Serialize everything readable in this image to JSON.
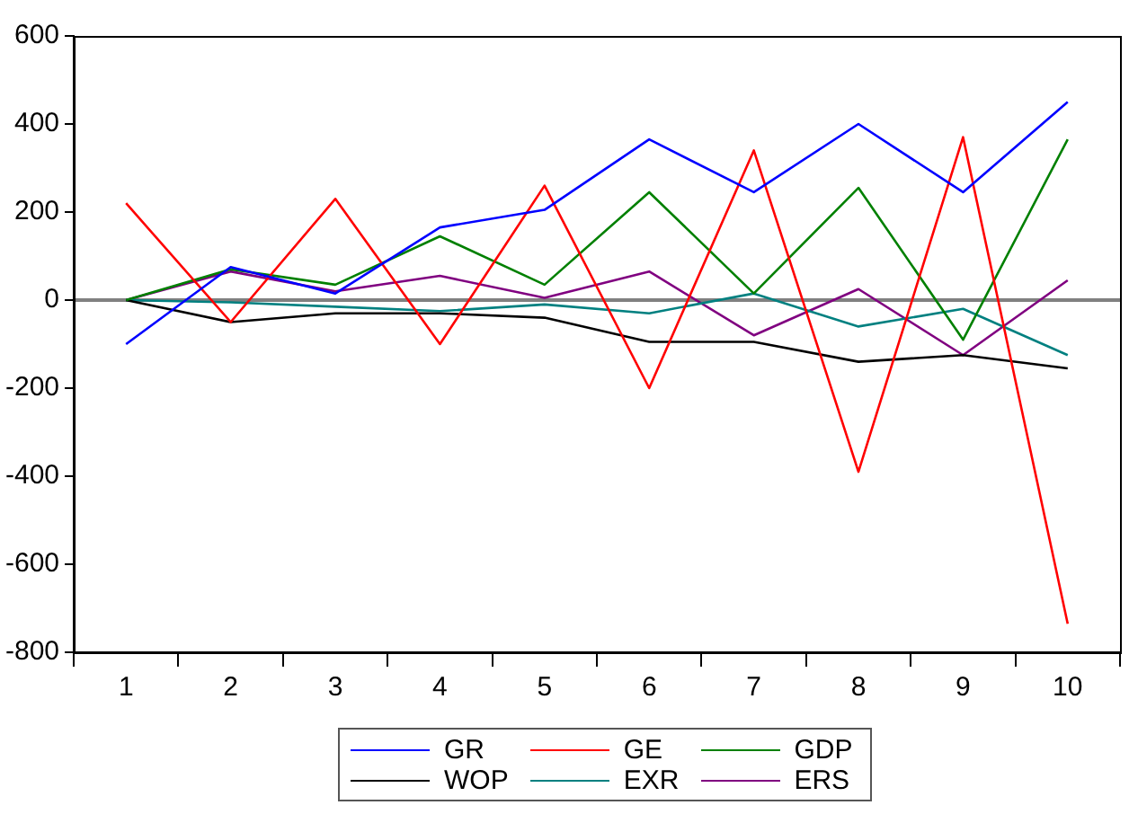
{
  "chart_data": {
    "type": "line",
    "categories": [
      "1",
      "2",
      "3",
      "4",
      "5",
      "6",
      "7",
      "8",
      "9",
      "10"
    ],
    "series": [
      {
        "name": "GR",
        "color": "#0000ff",
        "values": [
          -100,
          75,
          15,
          165,
          205,
          365,
          245,
          400,
          245,
          450
        ]
      },
      {
        "name": "GE",
        "color": "#ff0000",
        "values": [
          220,
          -50,
          230,
          -100,
          260,
          -200,
          340,
          -390,
          370,
          -735
        ]
      },
      {
        "name": "GDP",
        "color": "#008000",
        "values": [
          0,
          70,
          35,
          145,
          35,
          245,
          15,
          255,
          -90,
          365
        ]
      },
      {
        "name": "WOP",
        "color": "#000000",
        "values": [
          0,
          -50,
          -30,
          -30,
          -40,
          -95,
          -95,
          -140,
          -125,
          -155
        ]
      },
      {
        "name": "EXR",
        "color": "#008080",
        "values": [
          0,
          -5,
          -15,
          -25,
          -10,
          -30,
          15,
          -60,
          -20,
          -125
        ]
      },
      {
        "name": "ERS",
        "color": "#800080",
        "values": [
          0,
          65,
          20,
          55,
          5,
          65,
          -80,
          25,
          -125,
          45
        ]
      }
    ],
    "ylim": [
      -800,
      600
    ],
    "yticks": [
      -800,
      -600,
      -400,
      -200,
      0,
      200,
      400,
      600
    ],
    "ref_lines": [
      {
        "axis": "y",
        "value": 0,
        "color": "#808080"
      }
    ],
    "grid": false,
    "legend": "bottom",
    "marker": "none",
    "line_style": "solid"
  }
}
